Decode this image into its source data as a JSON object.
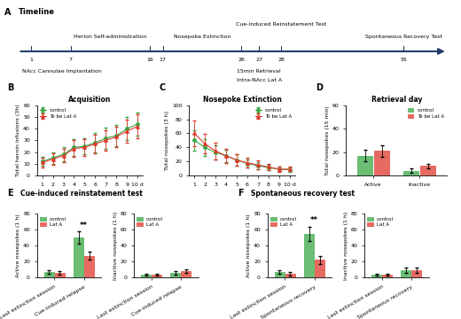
{
  "timeline": {
    "panel": "A",
    "title": "Timeline",
    "days": [
      1,
      7,
      16,
      17,
      26,
      27,
      28,
      55
    ],
    "events_above": [
      {
        "label": "Herion Self-administration",
        "days": [
          7,
          16
        ]
      },
      {
        "label": "Nosepoke Extinction",
        "days": [
          17,
          26
        ]
      },
      {
        "label": "Cue-induced Reinstatement Test",
        "days": [
          28
        ]
      },
      {
        "label": "Spontaneous Recovery Test",
        "days": [
          55
        ]
      }
    ],
    "events_below": [
      {
        "label": "NAcc Cannulae Implantation",
        "days": [
          1
        ]
      },
      {
        "label": "15min Retrieval",
        "days": [
          27
        ]
      },
      {
        "label": "Intra-NAcc Lat A",
        "days": [
          27
        ]
      }
    ]
  },
  "chart_data": [
    {
      "type": "line",
      "panel": "B",
      "title": "Acquisition",
      "y_label": "Total heroin infusions (3h)",
      "xlim": [
        0.5,
        10.5
      ],
      "xticks": [
        1,
        2,
        3,
        4,
        5,
        6,
        7,
        8,
        9,
        {
          "value": 10,
          "label": "10 d"
        }
      ],
      "ylim": [
        0,
        60
      ],
      "yticks": [
        0,
        10,
        20,
        30,
        40,
        50,
        60
      ],
      "legend": "upper left",
      "x": [
        1,
        2,
        3,
        4,
        5,
        6,
        7,
        8,
        9,
        10
      ],
      "series": [
        {
          "name": "control",
          "color": "#3aa845",
          "marker": "o",
          "values": [
            12,
            15,
            18,
            24,
            25,
            28,
            32,
            34,
            40,
            44
          ],
          "errors": [
            4,
            5,
            6,
            7,
            7,
            8,
            9,
            9,
            10,
            10
          ]
        },
        {
          "name": "To be Lat A",
          "color": "#e03a2f",
          "marker": "^",
          "values": [
            11,
            14,
            17,
            23,
            24,
            27,
            30,
            33,
            38,
            42
          ],
          "errors": [
            4,
            5,
            6,
            7,
            7,
            8,
            9,
            9,
            10,
            10
          ]
        }
      ]
    },
    {
      "type": "line",
      "panel": "C",
      "title": "Nosepoke Extinction",
      "y_label": "Total nosepokes (3 h)",
      "xlim": [
        0.5,
        10.5
      ],
      "xticks": [
        1,
        2,
        3,
        4,
        5,
        6,
        7,
        8,
        9,
        {
          "value": 10,
          "label": "10 d"
        }
      ],
      "ylim": [
        0,
        100
      ],
      "yticks": [
        0,
        20,
        40,
        60,
        80,
        100
      ],
      "legend": "upper right",
      "x": [
        1,
        2,
        3,
        4,
        5,
        6,
        7,
        8,
        9,
        10
      ],
      "series": [
        {
          "name": "control",
          "color": "#3aa845",
          "marker": "o",
          "values": [
            50,
            40,
            33,
            28,
            22,
            17,
            14,
            11,
            9,
            8
          ],
          "errors": [
            15,
            12,
            10,
            9,
            8,
            6,
            5,
            4,
            3,
            3
          ]
        },
        {
          "name": "To be Lat A",
          "color": "#e03a2f",
          "marker": "^",
          "values": [
            60,
            45,
            35,
            28,
            22,
            18,
            15,
            12,
            9,
            9
          ],
          "errors": [
            18,
            14,
            12,
            10,
            8,
            7,
            6,
            5,
            4,
            3
          ]
        }
      ]
    },
    {
      "type": "bar",
      "panel": "D",
      "title": "Retrieval day",
      "y_label": "Total nosepokes (15 min)",
      "categories": [
        "Active",
        "Inactive"
      ],
      "ylim": [
        0,
        60
      ],
      "yticks": [
        0,
        20,
        40,
        60
      ],
      "legend": "upper right",
      "series": [
        {
          "name": "control",
          "color": "#3aa845",
          "values": [
            17,
            4
          ],
          "errors": [
            5,
            2
          ]
        },
        {
          "name": "To be Lat A",
          "color": "#e03a2f",
          "values": [
            21,
            8
          ],
          "errors": [
            5,
            2
          ]
        }
      ]
    },
    {
      "type": "bar",
      "panel": "E",
      "title": "Cue-induced reinstatement test",
      "y_label": "Active nosepokes (1 h)",
      "categories": [
        "Last extinction session",
        "Cue-induced relapse"
      ],
      "ylim": [
        0,
        80
      ],
      "yticks": [
        0,
        20,
        40,
        60,
        80
      ],
      "legend": "upper left",
      "annotations": [
        {
          "text": "**",
          "category": "Cue-induced relapse"
        }
      ],
      "series": [
        {
          "name": "control",
          "color": "#3aa845",
          "values": [
            7,
            50
          ],
          "errors": [
            2,
            8
          ]
        },
        {
          "name": "Lat A",
          "color": "#e03a2f",
          "values": [
            6,
            27
          ],
          "errors": [
            2,
            5
          ]
        }
      ]
    },
    {
      "type": "bar",
      "y_label": "Inactive nosepokes (1 h)",
      "categories": [
        "Last extinction session",
        "Cue-induced relapse"
      ],
      "ylim": [
        0,
        80
      ],
      "yticks": [
        0,
        20,
        40,
        60,
        80
      ],
      "legend": "upper left",
      "series": [
        {
          "name": "control",
          "color": "#3aa845",
          "values": [
            4,
            6
          ],
          "errors": [
            1,
            2
          ]
        },
        {
          "name": "Lat A",
          "color": "#e03a2f",
          "values": [
            4,
            8
          ],
          "errors": [
            1,
            2
          ]
        }
      ]
    },
    {
      "type": "bar",
      "panel": "F",
      "title": "Spontaneous recovery test",
      "y_label": "Active nosepokes (1 h)",
      "categories": [
        "Last extinction session",
        "Spontaneous recovery"
      ],
      "ylim": [
        0,
        80
      ],
      "yticks": [
        0,
        20,
        40,
        60,
        80
      ],
      "legend": "upper left",
      "annotations": [
        {
          "text": "**",
          "category": "Spontaneous recovery"
        }
      ],
      "series": [
        {
          "name": "control",
          "color": "#3aa845",
          "values": [
            7,
            55
          ],
          "errors": [
            2,
            9
          ]
        },
        {
          "name": "Lat A",
          "color": "#e03a2f",
          "values": [
            5,
            22
          ],
          "errors": [
            2,
            5
          ]
        }
      ]
    },
    {
      "type": "bar",
      "y_label": "Inactive nosepokes (1 h)",
      "categories": [
        "Last extinction session",
        "Spontaneous recovery"
      ],
      "ylim": [
        0,
        80
      ],
      "yticks": [
        0,
        20,
        40,
        60,
        80
      ],
      "legend": "upper left",
      "series": [
        {
          "name": "control",
          "color": "#3aa845",
          "values": [
            4,
            9
          ],
          "errors": [
            1,
            3
          ]
        },
        {
          "name": "Lat A",
          "color": "#e03a2f",
          "values": [
            4,
            9
          ],
          "errors": [
            1,
            3
          ]
        }
      ]
    }
  ]
}
